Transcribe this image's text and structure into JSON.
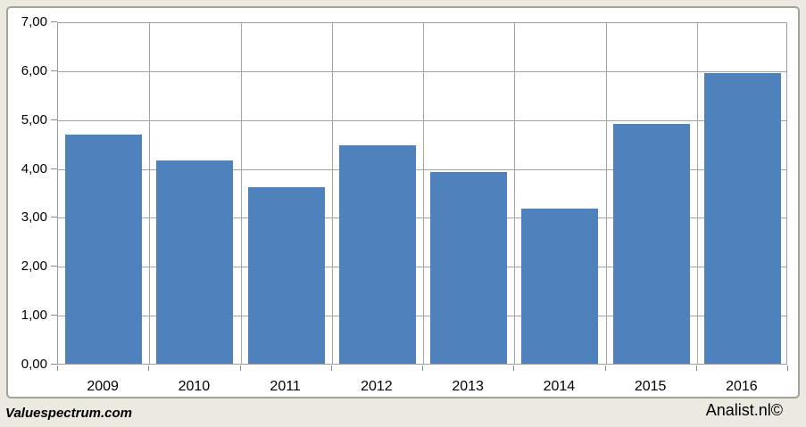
{
  "footer": {
    "left_text": "Valuespectrum.com",
    "right_text": "Analist.nl©"
  },
  "colors": {
    "bar": "#4f81bd",
    "background": "#eceae0",
    "plot_background": "#ffffff",
    "gridline": "#a3a3a3",
    "canvas_border": "#a5a299",
    "text": "#000000"
  },
  "chart_data": {
    "type": "bar",
    "categories": [
      "2009",
      "2010",
      "2011",
      "2012",
      "2013",
      "2014",
      "2015",
      "2016"
    ],
    "values": [
      4.68,
      4.15,
      3.61,
      4.47,
      3.92,
      3.17,
      4.9,
      5.95
    ],
    "title": "",
    "xlabel": "",
    "ylabel": "",
    "ylim": [
      0,
      7
    ],
    "ytick_step": 1,
    "ytick_labels": [
      "0,00",
      "1,00",
      "2,00",
      "3,00",
      "4,00",
      "5,00",
      "6,00",
      "7,00"
    ],
    "grid": true,
    "vertical_grid": true,
    "legend": false,
    "bar_gap_fraction": 0.08
  }
}
